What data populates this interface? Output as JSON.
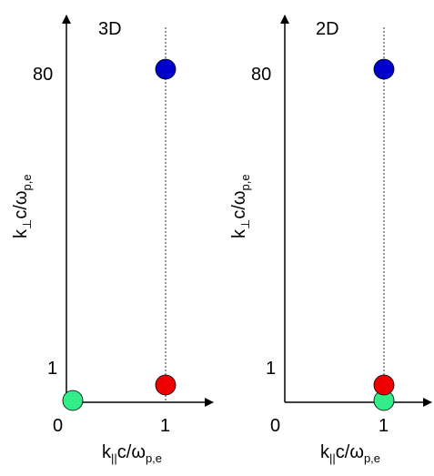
{
  "chart_data": [
    {
      "type": "scatter",
      "title": "3D",
      "xlabel": {
        "main": "k",
        "sub": "||",
        "rest": "c/ω",
        "sub2": "p,e"
      },
      "ylabel": {
        "main": "k",
        "sub": "⊥",
        "rest": "c/ω",
        "sub2": "p,e"
      },
      "x_ticks": [
        "0",
        "1"
      ],
      "y_ticks": [
        "1",
        "80"
      ],
      "points": [
        {
          "x": 0,
          "y": 0,
          "color": "#33ee88"
        },
        {
          "x": 1,
          "y": 1,
          "color": "#ee0000"
        },
        {
          "x": 1,
          "y": 80,
          "color": "#0000cc"
        }
      ]
    },
    {
      "type": "scatter",
      "title": "2D",
      "xlabel": {
        "main": "k",
        "sub": "||",
        "rest": "c/ω",
        "sub2": "p,e"
      },
      "ylabel": {
        "main": "k",
        "sub": "⊥",
        "rest": "c/ω",
        "sub2": "p,e"
      },
      "x_ticks": [
        "0",
        "1"
      ],
      "y_ticks": [
        "1",
        "80"
      ],
      "points": [
        {
          "x": 1,
          "y": 0,
          "color": "#33ee88"
        },
        {
          "x": 1,
          "y": 1,
          "color": "#ee0000"
        },
        {
          "x": 1,
          "y": 80,
          "color": "#0000cc"
        }
      ]
    }
  ]
}
